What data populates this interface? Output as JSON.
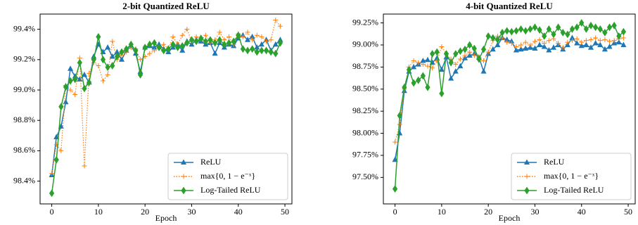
{
  "chart_data": [
    {
      "type": "line",
      "title": "2-bit Quantized ReLU",
      "x_label": "Epoch",
      "x": [
        0,
        1,
        2,
        3,
        4,
        5,
        6,
        7,
        8,
        9,
        10,
        11,
        12,
        13,
        14,
        15,
        16,
        17,
        18,
        19,
        20,
        21,
        22,
        23,
        24,
        25,
        26,
        27,
        28,
        29,
        30,
        31,
        32,
        33,
        34,
        35,
        36,
        37,
        38,
        39,
        40,
        41,
        42,
        43,
        44,
        45,
        46,
        47,
        48,
        49
      ],
      "xlim": [
        -2.5,
        51.5
      ],
      "xticks": [
        0,
        10,
        20,
        30,
        40,
        50
      ],
      "ylim": [
        98.25,
        99.5
      ],
      "yticks": [
        {
          "value": 98.4,
          "label": "98.4%"
        },
        {
          "value": 98.6,
          "label": "98.6%"
        },
        {
          "value": 98.8,
          "label": "98.8%"
        },
        {
          "value": 99.0,
          "label": "99.0%"
        },
        {
          "value": 99.2,
          "label": "99.2%"
        },
        {
          "value": 99.4,
          "label": "99.4%"
        }
      ],
      "legend": "lower right",
      "series": [
        {
          "name": "ReLU",
          "color": "#1f77b4",
          "marker": "triangle",
          "dash": false,
          "values": [
            98.44,
            98.69,
            98.76,
            98.92,
            99.14,
            99.09,
            99.07,
            99.1,
            99.05,
            99.22,
            99.3,
            99.25,
            99.28,
            99.22,
            99.25,
            99.2,
            99.26,
            99.29,
            99.24,
            99.12,
            99.28,
            99.29,
            99.28,
            99.3,
            99.27,
            99.25,
            99.28,
            99.3,
            99.26,
            99.32,
            99.3,
            99.33,
            99.32,
            99.3,
            99.31,
            99.24,
            99.31,
            99.28,
            99.3,
            99.29,
            99.34,
            99.36,
            99.33,
            99.35,
            99.28,
            99.3,
            99.33,
            99.26,
            99.3,
            99.33
          ]
        },
        {
          "name": "max{0, 1 − e⁻ˣ}",
          "color": "#ff7f0e",
          "marker": "plus",
          "dash": true,
          "values": [
            98.45,
            98.64,
            98.6,
            99.03,
            99.0,
            98.97,
            99.21,
            98.5,
            99.11,
            99.18,
            99.16,
            99.06,
            99.1,
            99.32,
            99.2,
            99.23,
            99.25,
            99.28,
            99.27,
            99.2,
            99.22,
            99.24,
            99.26,
            99.28,
            99.3,
            99.27,
            99.35,
            99.3,
            99.36,
            99.4,
            99.32,
            99.35,
            99.33,
            99.36,
            99.31,
            99.33,
            99.38,
            99.33,
            99.35,
            99.3,
            99.37,
            99.35,
            99.38,
            99.33,
            99.36,
            99.35,
            99.32,
            99.33,
            99.46,
            99.42
          ]
        },
        {
          "name": "Log-Tailed ReLU",
          "color": "#2ca02c",
          "marker": "diamond",
          "dash": false,
          "values": [
            98.32,
            98.54,
            98.89,
            99.02,
            99.06,
            99.07,
            99.18,
            99.01,
            99.05,
            99.2,
            99.35,
            99.2,
            99.15,
            99.16,
            99.22,
            99.25,
            99.27,
            99.3,
            99.26,
            99.1,
            99.28,
            99.3,
            99.31,
            99.28,
            99.26,
            99.27,
            99.3,
            99.28,
            99.29,
            99.31,
            99.33,
            99.32,
            99.34,
            99.32,
            99.33,
            99.31,
            99.33,
            99.3,
            99.31,
            99.32,
            99.36,
            99.27,
            99.26,
            99.27,
            99.25,
            99.26,
            99.26,
            99.25,
            99.24,
            99.31
          ]
        }
      ]
    },
    {
      "type": "line",
      "title": "4-bit Quantized ReLU",
      "x_label": "Epoch",
      "x": [
        0,
        1,
        2,
        3,
        4,
        5,
        6,
        7,
        8,
        9,
        10,
        11,
        12,
        13,
        14,
        15,
        16,
        17,
        18,
        19,
        20,
        21,
        22,
        23,
        24,
        25,
        26,
        27,
        28,
        29,
        30,
        31,
        32,
        33,
        34,
        35,
        36,
        37,
        38,
        39,
        40,
        41,
        42,
        43,
        44,
        45,
        46,
        47,
        48,
        49
      ],
      "xlim": [
        -2.5,
        51.5
      ],
      "xticks": [
        0,
        10,
        20,
        30,
        40,
        50
      ],
      "ylim": [
        97.2,
        99.35
      ],
      "yticks": [
        {
          "value": 97.5,
          "label": "97.50%"
        },
        {
          "value": 97.75,
          "label": "97.75%"
        },
        {
          "value": 98.0,
          "label": "98.00%"
        },
        {
          "value": 98.25,
          "label": "98.25%"
        },
        {
          "value": 98.5,
          "label": "98.50%"
        },
        {
          "value": 98.75,
          "label": "98.75%"
        },
        {
          "value": 99.0,
          "label": "99.00%"
        },
        {
          "value": 99.25,
          "label": "99.25%"
        }
      ],
      "legend": "lower right",
      "series": [
        {
          "name": "ReLU",
          "color": "#1f77b4",
          "marker": "triangle",
          "dash": false,
          "values": [
            97.7,
            98.0,
            98.48,
            98.7,
            98.75,
            98.78,
            98.82,
            98.83,
            98.8,
            98.85,
            98.72,
            98.86,
            98.62,
            98.7,
            98.76,
            98.85,
            98.88,
            98.9,
            98.86,
            98.7,
            98.9,
            98.95,
            99.0,
            99.08,
            99.06,
            99.04,
            98.94,
            98.95,
            98.96,
            98.97,
            98.96,
            99.0,
            98.98,
            98.94,
            98.97,
            99.0,
            98.95,
            99.0,
            99.08,
            99.02,
            98.99,
            99.0,
            98.97,
            99.02,
            99.0,
            98.95,
            98.98,
            99.02,
            99.03,
            99.0
          ]
        },
        {
          "name": "max{0, 1 − e⁻ˣ}",
          "color": "#ff7f0e",
          "marker": "plus",
          "dash": true,
          "values": [
            97.9,
            98.1,
            98.5,
            98.75,
            98.82,
            98.8,
            98.78,
            98.76,
            98.74,
            98.82,
            98.98,
            98.9,
            98.84,
            98.78,
            98.84,
            98.88,
            98.92,
            98.88,
            98.86,
            98.82,
            98.92,
            99.05,
            99.1,
            99.08,
            99.03,
            99.02,
            98.98,
            99.0,
            99.03,
            99.0,
            99.04,
            99.06,
            99.02,
            99.05,
            99.07,
            99.02,
            98.97,
            99.03,
            99.05,
            99.07,
            99.03,
            99.05,
            99.06,
            99.08,
            99.05,
            99.06,
            99.04,
            99.05,
            99.07,
            99.08
          ]
        },
        {
          "name": "Log-Tailed ReLU",
          "color": "#2ca02c",
          "marker": "diamond",
          "dash": false,
          "values": [
            97.37,
            98.2,
            98.52,
            98.72,
            98.57,
            98.6,
            98.65,
            98.52,
            98.9,
            98.92,
            98.45,
            98.9,
            98.8,
            98.9,
            98.93,
            98.95,
            99.0,
            98.96,
            98.84,
            98.95,
            99.1,
            99.08,
            99.06,
            99.14,
            99.16,
            99.15,
            99.16,
            99.18,
            99.16,
            99.18,
            99.2,
            99.17,
            99.1,
            99.18,
            99.12,
            99.2,
            99.14,
            99.12,
            99.18,
            99.2,
            99.25,
            99.18,
            99.22,
            99.2,
            99.18,
            99.14,
            99.2,
            99.22,
            99.1,
            99.15
          ]
        }
      ]
    }
  ]
}
